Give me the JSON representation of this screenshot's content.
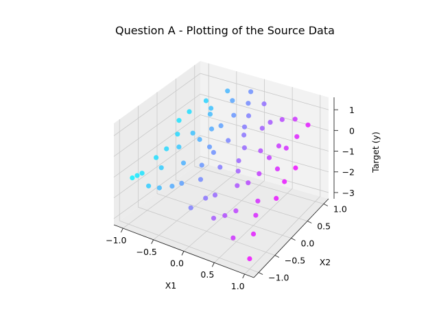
{
  "chart_data": {
    "type": "scatter3d",
    "title": "Question A - Plotting of the Source Data",
    "xlabel": "X1",
    "ylabel": "X2",
    "zlabel": "Target (y)",
    "xlim": [
      -1.15,
      1.15
    ],
    "ylim": [
      -1.15,
      1.15
    ],
    "zlim": [
      -3.3,
      1.6
    ],
    "x_ticks": [
      "−1.0",
      "−0.5",
      "0.0",
      "0.5",
      "1.0"
    ],
    "y_ticks": [
      "−1.0",
      "−0.5",
      "0.0",
      "0.5",
      "1.0"
    ],
    "z_ticks": [
      "−3",
      "−2",
      "−1",
      "0",
      "1"
    ],
    "colormap": "cool",
    "color_from": "#00ffff",
    "color_to": "#ff00ff",
    "grid": true,
    "points": [
      [
        -1.0,
        -0.9,
        -1.2
      ],
      [
        -0.95,
        -0.85,
        -1.1
      ],
      [
        -0.9,
        -0.8,
        -1.0
      ],
      [
        -0.85,
        -0.5,
        -0.6
      ],
      [
        -0.8,
        -0.3,
        -0.4
      ],
      [
        -0.9,
        0.2,
        0.2
      ],
      [
        -0.85,
        0.4,
        0.4
      ],
      [
        -0.75,
        0.7,
        0.6
      ],
      [
        -0.7,
        -0.6,
        -0.8
      ],
      [
        -0.65,
        -0.2,
        -0.3
      ],
      [
        -0.6,
        0.1,
        0.0
      ],
      [
        -0.55,
        0.5,
        0.4
      ],
      [
        -0.5,
        0.9,
        1.0
      ],
      [
        -0.55,
        -0.9,
        -1.2
      ],
      [
        -0.45,
        -0.4,
        -0.6
      ],
      [
        -0.4,
        0.3,
        0.1
      ],
      [
        -0.35,
        0.8,
        0.8
      ],
      [
        -0.3,
        -0.7,
        -1.0
      ],
      [
        -0.25,
        0.0,
        -0.2
      ],
      [
        -0.2,
        0.6,
        0.5
      ],
      [
        -0.15,
        1.0,
        1.1
      ],
      [
        -0.1,
        -0.5,
        -0.9
      ],
      [
        -0.05,
        0.2,
        0.0
      ],
      [
        0.0,
        0.7,
        0.5
      ],
      [
        0.0,
        -0.95,
        -1.5
      ],
      [
        0.05,
        -0.2,
        -0.6
      ],
      [
        0.1,
        0.4,
        0.1
      ],
      [
        0.15,
        0.9,
        0.9
      ],
      [
        0.2,
        -0.6,
        -1.2
      ],
      [
        0.25,
        0.0,
        -0.4
      ],
      [
        0.3,
        0.6,
        0.3
      ],
      [
        0.35,
        -0.9,
        -1.7
      ],
      [
        0.4,
        -0.3,
        -1.0
      ],
      [
        0.45,
        0.3,
        -0.2
      ],
      [
        0.5,
        0.85,
        0.5
      ],
      [
        0.55,
        -0.6,
        -1.6
      ],
      [
        0.6,
        0.0,
        -0.7
      ],
      [
        0.65,
        0.5,
        -0.1
      ],
      [
        0.7,
        -0.95,
        -2.2
      ],
      [
        0.75,
        -0.3,
        -1.4
      ],
      [
        0.8,
        0.2,
        -0.6
      ],
      [
        0.85,
        0.7,
        0.2
      ],
      [
        0.9,
        -0.7,
        -2.2
      ],
      [
        0.95,
        -0.1,
        -1.4
      ],
      [
        1.0,
        0.4,
        -0.7
      ],
      [
        1.0,
        -1.0,
        -2.8
      ],
      [
        0.9,
        0.95,
        0.4
      ],
      [
        0.7,
        0.9,
        0.6
      ],
      [
        0.3,
        -0.1,
        -0.7
      ],
      [
        -0.3,
        0.4,
        0.2
      ],
      [
        -0.6,
        0.6,
        0.5
      ],
      [
        -0.2,
        -0.3,
        -0.6
      ],
      [
        0.1,
        -0.7,
        -1.3
      ],
      [
        0.45,
        -0.75,
        -1.7
      ],
      [
        0.6,
        0.3,
        -0.4
      ],
      [
        0.8,
        -0.45,
        -1.8
      ],
      [
        -0.8,
        0.0,
        -0.1
      ],
      [
        -0.45,
        0.05,
        -0.1
      ],
      [
        0.2,
        0.25,
        -0.2
      ],
      [
        0.5,
        -0.15,
        -1.0
      ],
      [
        -0.1,
        0.85,
        0.8
      ],
      [
        0.35,
        0.75,
        0.4
      ],
      [
        0.75,
        0.55,
        -0.2
      ],
      [
        0.95,
        0.15,
        -1.0
      ],
      [
        -0.7,
        -0.95,
        -1.2
      ],
      [
        -0.4,
        -0.8,
        -1.1
      ],
      [
        0.05,
        0.5,
        0.3
      ],
      [
        -0.15,
        -0.05,
        -0.3
      ]
    ]
  }
}
